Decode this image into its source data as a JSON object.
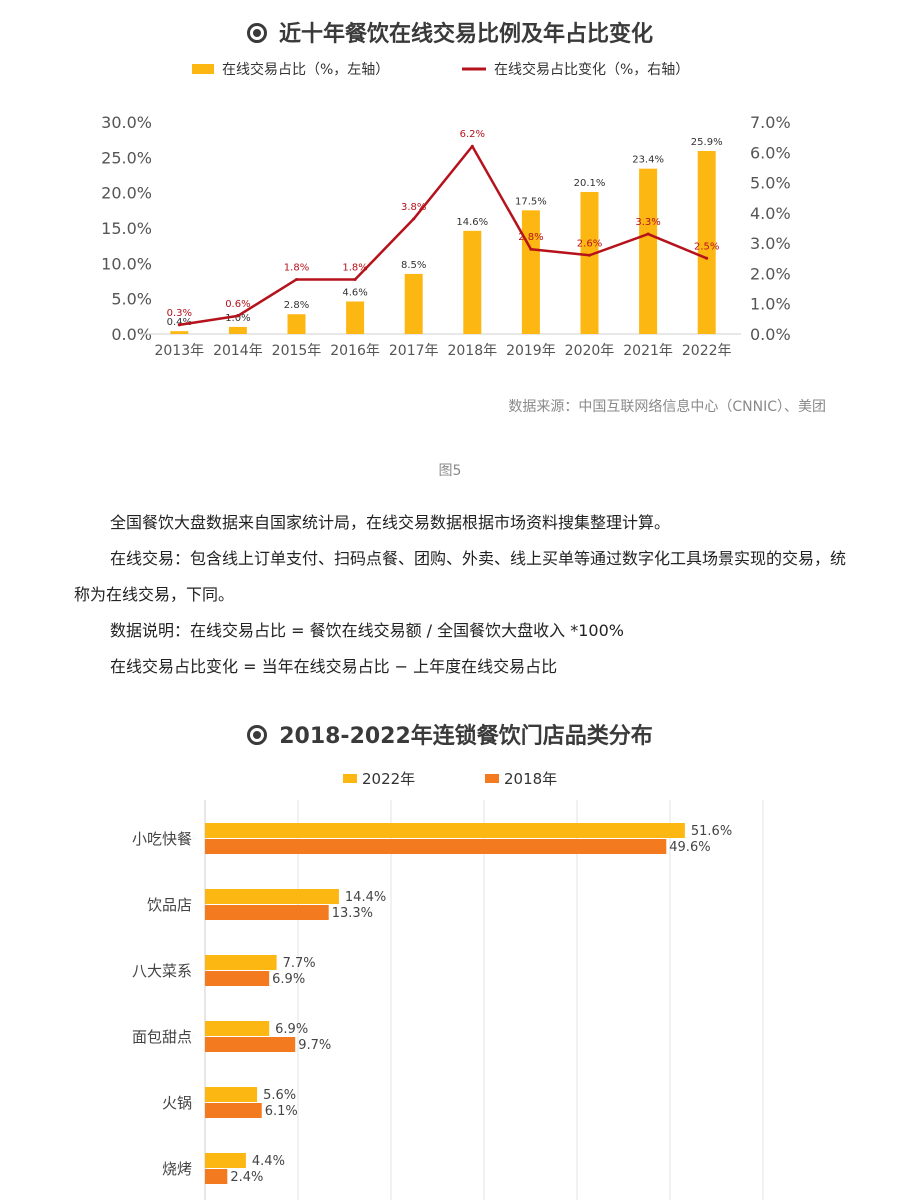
{
  "chart_data": [
    {
      "type": "bar+line",
      "title": "近十年餐饮在线交易比例及年占比变化",
      "categories": [
        "2013年",
        "2014年",
        "2015年",
        "2016年",
        "2017年",
        "2018年",
        "2019年",
        "2020年",
        "2021年",
        "2022年"
      ],
      "series": [
        {
          "name": "在线交易占比（%，左轴）",
          "type": "bar",
          "axis": "left",
          "values": [
            0.4,
            1.0,
            2.8,
            4.6,
            8.5,
            14.6,
            17.5,
            20.1,
            23.4,
            25.9
          ],
          "labels": [
            "0.4%",
            "1.0%",
            "2.8%",
            "4.6%",
            "8.5%",
            "14.6%",
            "17.5%",
            "20.1%",
            "23.4%",
            "25.9%"
          ]
        },
        {
          "name": "在线交易占比变化（%，右轴）",
          "type": "line",
          "axis": "right",
          "values": [
            0.3,
            0.6,
            1.8,
            1.8,
            3.8,
            6.2,
            2.8,
            2.6,
            3.3,
            2.5
          ],
          "labels": [
            "0.3%",
            "0.6%",
            "1.8%",
            "1.8%",
            "3.8%",
            "6.2%",
            "2.8%",
            "2.6%",
            "3.3%",
            "2.5%"
          ]
        }
      ],
      "left_axis": {
        "ylim": [
          0,
          30
        ],
        "ticks": [
          "0.0%",
          "5.0%",
          "10.0%",
          "15.0%",
          "20.0%",
          "25.0%",
          "30.0%"
        ]
      },
      "right_axis": {
        "ylim": [
          0,
          7
        ],
        "ticks": [
          "0.0%",
          "1.0%",
          "2.0%",
          "3.0%",
          "4.0%",
          "5.0%",
          "6.0%",
          "7.0%"
        ]
      },
      "legend": "top-center",
      "grid": false,
      "source": "数据来源：中国互联网络信息中心（CNNIC）、美团"
    },
    {
      "type": "bar",
      "orientation": "horizontal",
      "title": "2018-2022年连锁餐饮门店品类分布",
      "categories": [
        "小吃快餐",
        "饮品店",
        "八大菜系",
        "面包甜点",
        "火锅",
        "烧烤"
      ],
      "series": [
        {
          "name": "2022年",
          "values": [
            51.6,
            14.4,
            7.7,
            6.9,
            5.6,
            4.4
          ],
          "labels": [
            "51.6%",
            "14.4%",
            "7.7%",
            "6.9%",
            "5.6%",
            "4.4%"
          ]
        },
        {
          "name": "2018年",
          "values": [
            49.6,
            13.3,
            6.9,
            9.7,
            6.1,
            2.4
          ],
          "labels": [
            "49.6%",
            "13.3%",
            "6.9%",
            "9.7%",
            "6.1%",
            "2.4%"
          ]
        }
      ],
      "xlim": [
        0,
        60
      ],
      "legend": "top-center",
      "grid": true
    }
  ],
  "caption": "图5",
  "notes": [
    "全国餐饮大盘数据来自国家统计局，在线交易数据根据市场资料搜集整理计算。",
    "在线交易：包含线上订单支付、扫码点餐、团购、外卖、线上买单等通过数字化工具场景实现的交易，统称为在线交易，下同。",
    "数据说明：在线交易占比 = 餐饮在线交易额 / 全国餐饮大盘收入 *100%",
    "在线交易占比变化 = 当年在线交易占比 − 上年度在线交易占比"
  ],
  "colors": {
    "bar_yellow": "#FDB713",
    "bar_orange": "#F47A20",
    "line_red": "#B5121B",
    "axis_text": "#555555",
    "grid": "#e3e3e3"
  }
}
